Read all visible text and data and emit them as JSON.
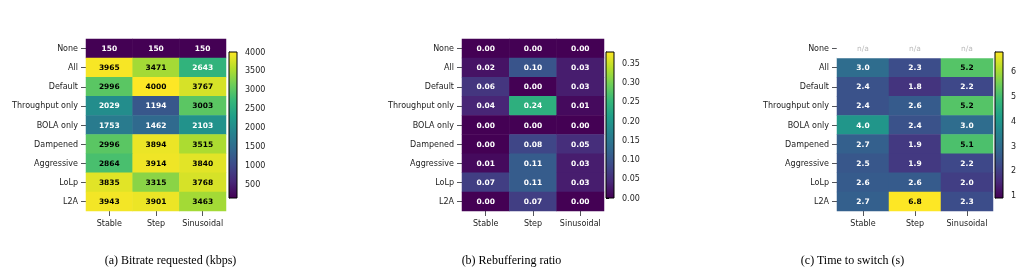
{
  "chart_data": [
    {
      "type": "heatmap",
      "title": "(a) Bitrate requested (kbps)",
      "categories": [
        "Stable",
        "Step",
        "Sinusoidal"
      ],
      "y_categories": [
        "None",
        "All",
        "Default",
        "Throughput only",
        "BOLA only",
        "Dampened",
        "Aggressive",
        "LoLp",
        "L2A"
      ],
      "cells": [
        [
          150,
          150,
          150
        ],
        [
          3965,
          3471,
          2643
        ],
        [
          2996,
          4000,
          3767
        ],
        [
          2029,
          1194,
          3003
        ],
        [
          1753,
          1462,
          2103
        ],
        [
          2996,
          3894,
          3515
        ],
        [
          2864,
          3914,
          3840
        ],
        [
          3835,
          3315,
          3768
        ],
        [
          3943,
          3901,
          3463
        ]
      ],
      "clim": [
        150,
        4000
      ],
      "cticks": [
        500,
        1000,
        1500,
        2000,
        2500,
        3000,
        3500,
        4000
      ],
      "data_labels": true
    },
    {
      "type": "heatmap",
      "title": "(b) Rebuffering ratio",
      "categories": [
        "Stable",
        "Step",
        "Sinusoidal"
      ],
      "y_categories": [
        "None",
        "All",
        "Default",
        "Throughput only",
        "BOLA only",
        "Dampened",
        "Aggressive",
        "LoLp",
        "L2A"
      ],
      "cells": [
        [
          0,
          0,
          0
        ],
        [
          0.02,
          0.1,
          0.03
        ],
        [
          0.06,
          0,
          0.03
        ],
        [
          0.04,
          0.24,
          0.01
        ],
        [
          0,
          0,
          0
        ],
        [
          0,
          0.08,
          0.05
        ],
        [
          0.01,
          0.11,
          0.03
        ],
        [
          0.07,
          0.11,
          0.03
        ],
        [
          0,
          0.07,
          0
        ]
      ],
      "cell_labels": [
        [
          "0.00",
          "0.00",
          "0.00"
        ],
        [
          "0.02",
          "0.10",
          "0.03"
        ],
        [
          "0.06",
          "0.00",
          "0.03"
        ],
        [
          "0.04",
          "0.24",
          "0.01"
        ],
        [
          "0.00",
          "0.00",
          "0.00"
        ],
        [
          "0.00",
          "0.08",
          "0.05"
        ],
        [
          "0.01",
          "0.11",
          "0.03"
        ],
        [
          "0.07",
          "0.11",
          "0.03"
        ],
        [
          "0.00",
          "0.07",
          "0.00"
        ]
      ],
      "clim": [
        0,
        0.38
      ],
      "cticks": [
        {
          "value": 0,
          "label": "0.00"
        },
        {
          "value": 0.05,
          "label": "0.05"
        },
        {
          "value": 0.1,
          "label": "0.10"
        },
        {
          "value": 0.15,
          "label": "0.15"
        },
        {
          "value": 0.2,
          "label": "0.20"
        },
        {
          "value": 0.25,
          "label": "0.25"
        },
        {
          "value": 0.3,
          "label": "0.30"
        },
        {
          "value": 0.35,
          "label": "0.35"
        }
      ]
    },
    {
      "type": "heatmap",
      "title": "(c) Time to switch (s)",
      "categories": [
        "Stable",
        "Step",
        "Sinusoidal"
      ],
      "y_categories": [
        "None",
        "All",
        "Default",
        "Throughput only",
        "BOLA only",
        "Dampened",
        "Aggressive",
        "LoLp",
        "L2A"
      ],
      "cells": [
        [
          null,
          null,
          null
        ],
        [
          3.0,
          2.3,
          5.2
        ],
        [
          2.4,
          1.8,
          2.2
        ],
        [
          2.4,
          2.6,
          5.2
        ],
        [
          4.0,
          2.4,
          3.0
        ],
        [
          2.7,
          1.9,
          5.1
        ],
        [
          2.5,
          1.9,
          2.2
        ],
        [
          2.6,
          2.6,
          2.0
        ],
        [
          2.7,
          6.8,
          2.3
        ]
      ],
      "cell_labels": [
        [
          "n/a",
          "n/a",
          "n/a"
        ],
        [
          "3.0",
          "2.3",
          "5.2"
        ],
        [
          "2.4",
          "1.8",
          "2.2"
        ],
        [
          "2.4",
          "2.6",
          "5.2"
        ],
        [
          "4.0",
          "2.4",
          "3.0"
        ],
        [
          "2.7",
          "1.9",
          "5.1"
        ],
        [
          "2.5",
          "1.9",
          "2.2"
        ],
        [
          "2.6",
          "2.6",
          "2.0"
        ],
        [
          "2.7",
          "6.8",
          "2.3"
        ]
      ],
      "clim": [
        0.9,
        6.8
      ],
      "cticks": [
        1,
        2,
        3,
        4,
        5,
        6
      ]
    }
  ]
}
